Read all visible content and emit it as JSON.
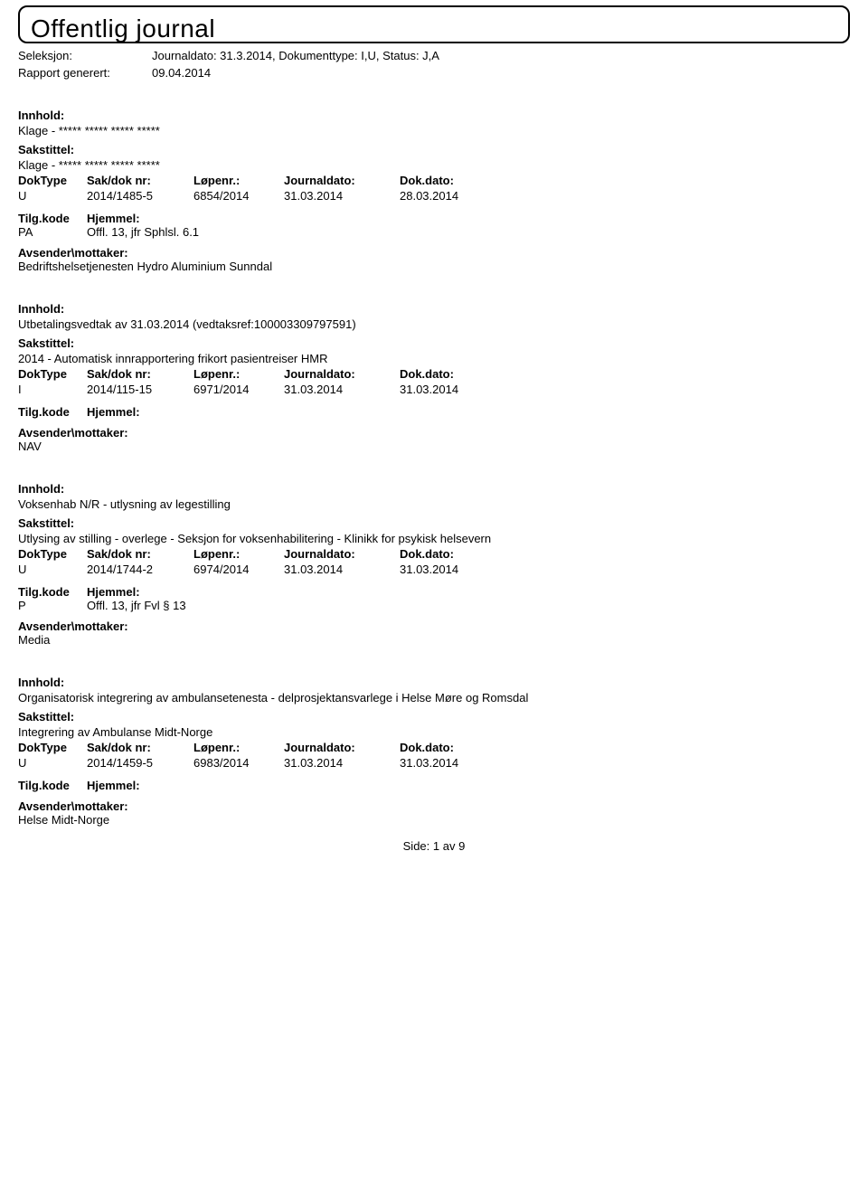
{
  "title": "Offentlig journal",
  "meta": {
    "seleksjon_label": "Seleksjon:",
    "seleksjon_value": "Journaldato: 31.3.2014, Dokumenttype: I,U, Status: J,A",
    "rapport_label": "Rapport generert:",
    "rapport_value": "09.04.2014"
  },
  "labels": {
    "innhold": "Innhold:",
    "sakstittel": "Sakstittel:",
    "doktype": "DokType",
    "sakdok": "Sak/dok nr:",
    "lopenr": "Løpenr.:",
    "journaldato": "Journaldato:",
    "dokdato": "Dok.dato:",
    "tilgkode": "Tilg.kode",
    "hjemmel": "Hjemmel:",
    "avsender": "Avsender\\mottaker:"
  },
  "records": [
    {
      "innhold": "Klage - ***** ***** ***** *****",
      "sakstittel": "Klage - ***** ***** ***** *****",
      "doktype": "U",
      "sakdok": "2014/1485-5",
      "lopenr": "6854/2014",
      "jdato": "31.03.2014",
      "ddato": "28.03.2014",
      "tilgkode": "PA",
      "hjemmel": "Offl. 13, jfr Sphlsl. 6.1",
      "avsender": "Bedriftshelsetjenesten Hydro Aluminium Sunndal"
    },
    {
      "innhold": "Utbetalingsvedtak av 31.03.2014 (vedtaksref:100003309797591)",
      "sakstittel": "2014 - Automatisk innrapportering frikort pasientreiser HMR",
      "doktype": "I",
      "sakdok": "2014/115-15",
      "lopenr": "6971/2014",
      "jdato": "31.03.2014",
      "ddato": "31.03.2014",
      "tilgkode": "",
      "hjemmel": "",
      "avsender": "NAV"
    },
    {
      "innhold": "Voksenhab N/R - utlysning av legestilling",
      "sakstittel": "Utlysing av stilling - overlege - Seksjon for voksenhabilitering - Klinikk for psykisk helsevern",
      "doktype": "U",
      "sakdok": "2014/1744-2",
      "lopenr": "6974/2014",
      "jdato": "31.03.2014",
      "ddato": "31.03.2014",
      "tilgkode": "P",
      "hjemmel": "Offl. 13, jfr Fvl § 13",
      "avsender": "Media"
    },
    {
      "innhold": "Organisatorisk integrering av ambulansetenesta - delprosjektansvarlege i Helse Møre og Romsdal",
      "sakstittel": "Integrering av Ambulanse Midt-Norge",
      "doktype": "U",
      "sakdok": "2014/1459-5",
      "lopenr": "6983/2014",
      "jdato": "31.03.2014",
      "ddato": "31.03.2014",
      "tilgkode": "",
      "hjemmel": "",
      "avsender": "Helse Midt-Norge"
    }
  ],
  "footer": {
    "side_label": "Side:",
    "page": "1",
    "av": "av",
    "total": "9"
  }
}
